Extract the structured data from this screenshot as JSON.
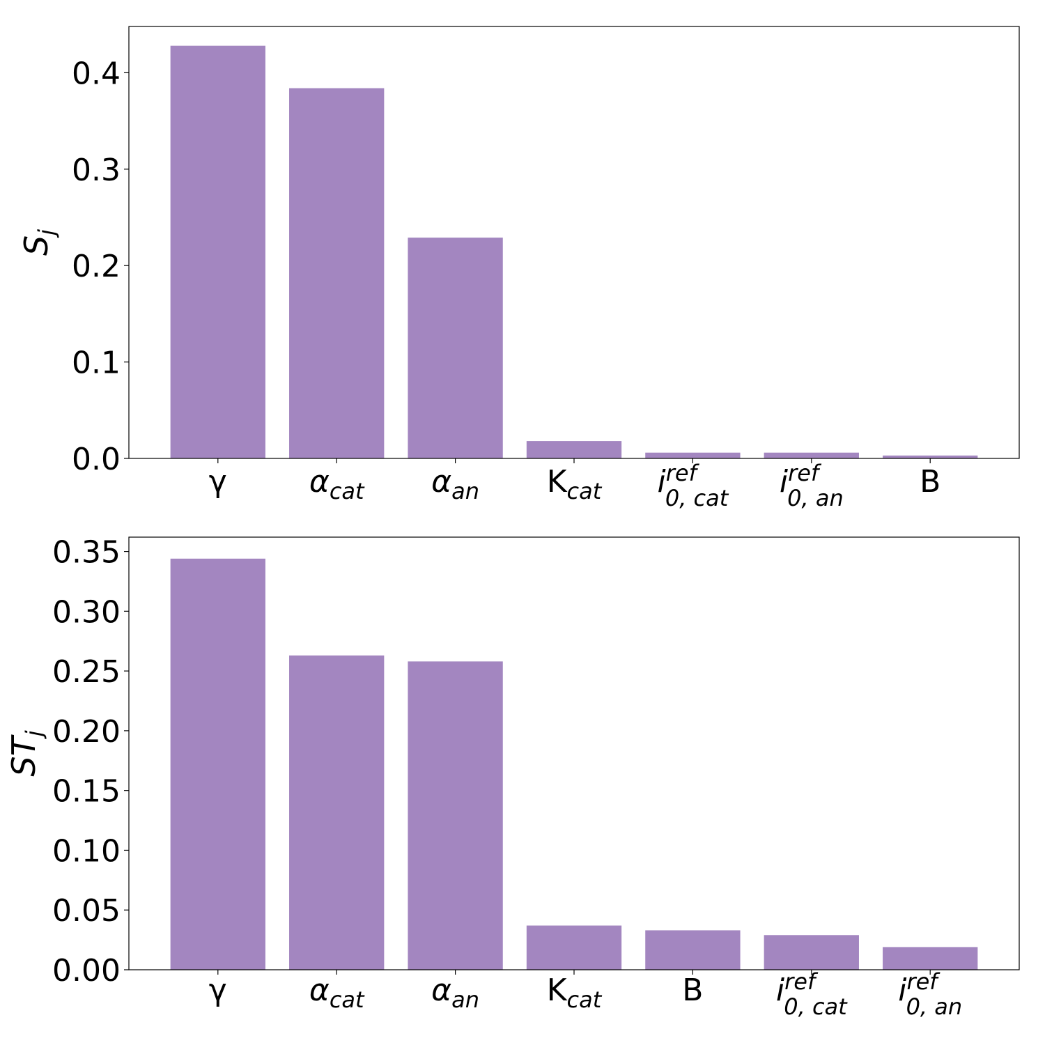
{
  "chart_data": [
    {
      "type": "bar",
      "ylabel": {
        "main": "S",
        "sub": "j"
      },
      "ylim": [
        0,
        0.448
      ],
      "yticks": [
        "0.0",
        "0.1",
        "0.2",
        "0.3",
        "0.4"
      ],
      "ytick_values": [
        0.0,
        0.1,
        0.2,
        0.3,
        0.4
      ],
      "categories": [
        {
          "main": "γ",
          "sub": "",
          "sup": "",
          "main_italic": false
        },
        {
          "main": "α",
          "sub": "cat",
          "sup": "",
          "main_italic": true
        },
        {
          "main": "α",
          "sub": "an",
          "sup": "",
          "main_italic": true
        },
        {
          "main": "K",
          "sub": "cat",
          "sup": "",
          "main_italic": false
        },
        {
          "main": "i",
          "sub": "0, cat",
          "sup": "ref",
          "main_italic": true
        },
        {
          "main": "i",
          "sub": "0, an",
          "sup": "ref",
          "main_italic": true
        },
        {
          "main": "B",
          "sub": "",
          "sup": "",
          "main_italic": false
        }
      ],
      "values": [
        0.428,
        0.384,
        0.229,
        0.018,
        0.006,
        0.006,
        0.003
      ],
      "bar_color": "#a386c0"
    },
    {
      "type": "bar",
      "ylabel": {
        "main": "ST",
        "sub": "j"
      },
      "ylim": [
        0,
        0.362
      ],
      "yticks": [
        "0.00",
        "0.05",
        "0.10",
        "0.15",
        "0.20",
        "0.25",
        "0.30",
        "0.35"
      ],
      "ytick_values": [
        0.0,
        0.05,
        0.1,
        0.15,
        0.2,
        0.25,
        0.3,
        0.35
      ],
      "categories": [
        {
          "main": "γ",
          "sub": "",
          "sup": "",
          "main_italic": false
        },
        {
          "main": "α",
          "sub": "cat",
          "sup": "",
          "main_italic": true
        },
        {
          "main": "α",
          "sub": "an",
          "sup": "",
          "main_italic": true
        },
        {
          "main": "K",
          "sub": "cat",
          "sup": "",
          "main_italic": false
        },
        {
          "main": "B",
          "sub": "",
          "sup": "",
          "main_italic": false
        },
        {
          "main": "i",
          "sub": "0, cat",
          "sup": "ref",
          "main_italic": true
        },
        {
          "main": "i",
          "sub": "0, an",
          "sup": "ref",
          "main_italic": true
        }
      ],
      "values": [
        0.344,
        0.263,
        0.258,
        0.037,
        0.033,
        0.029,
        0.019
      ],
      "bar_color": "#a386c0"
    }
  ]
}
